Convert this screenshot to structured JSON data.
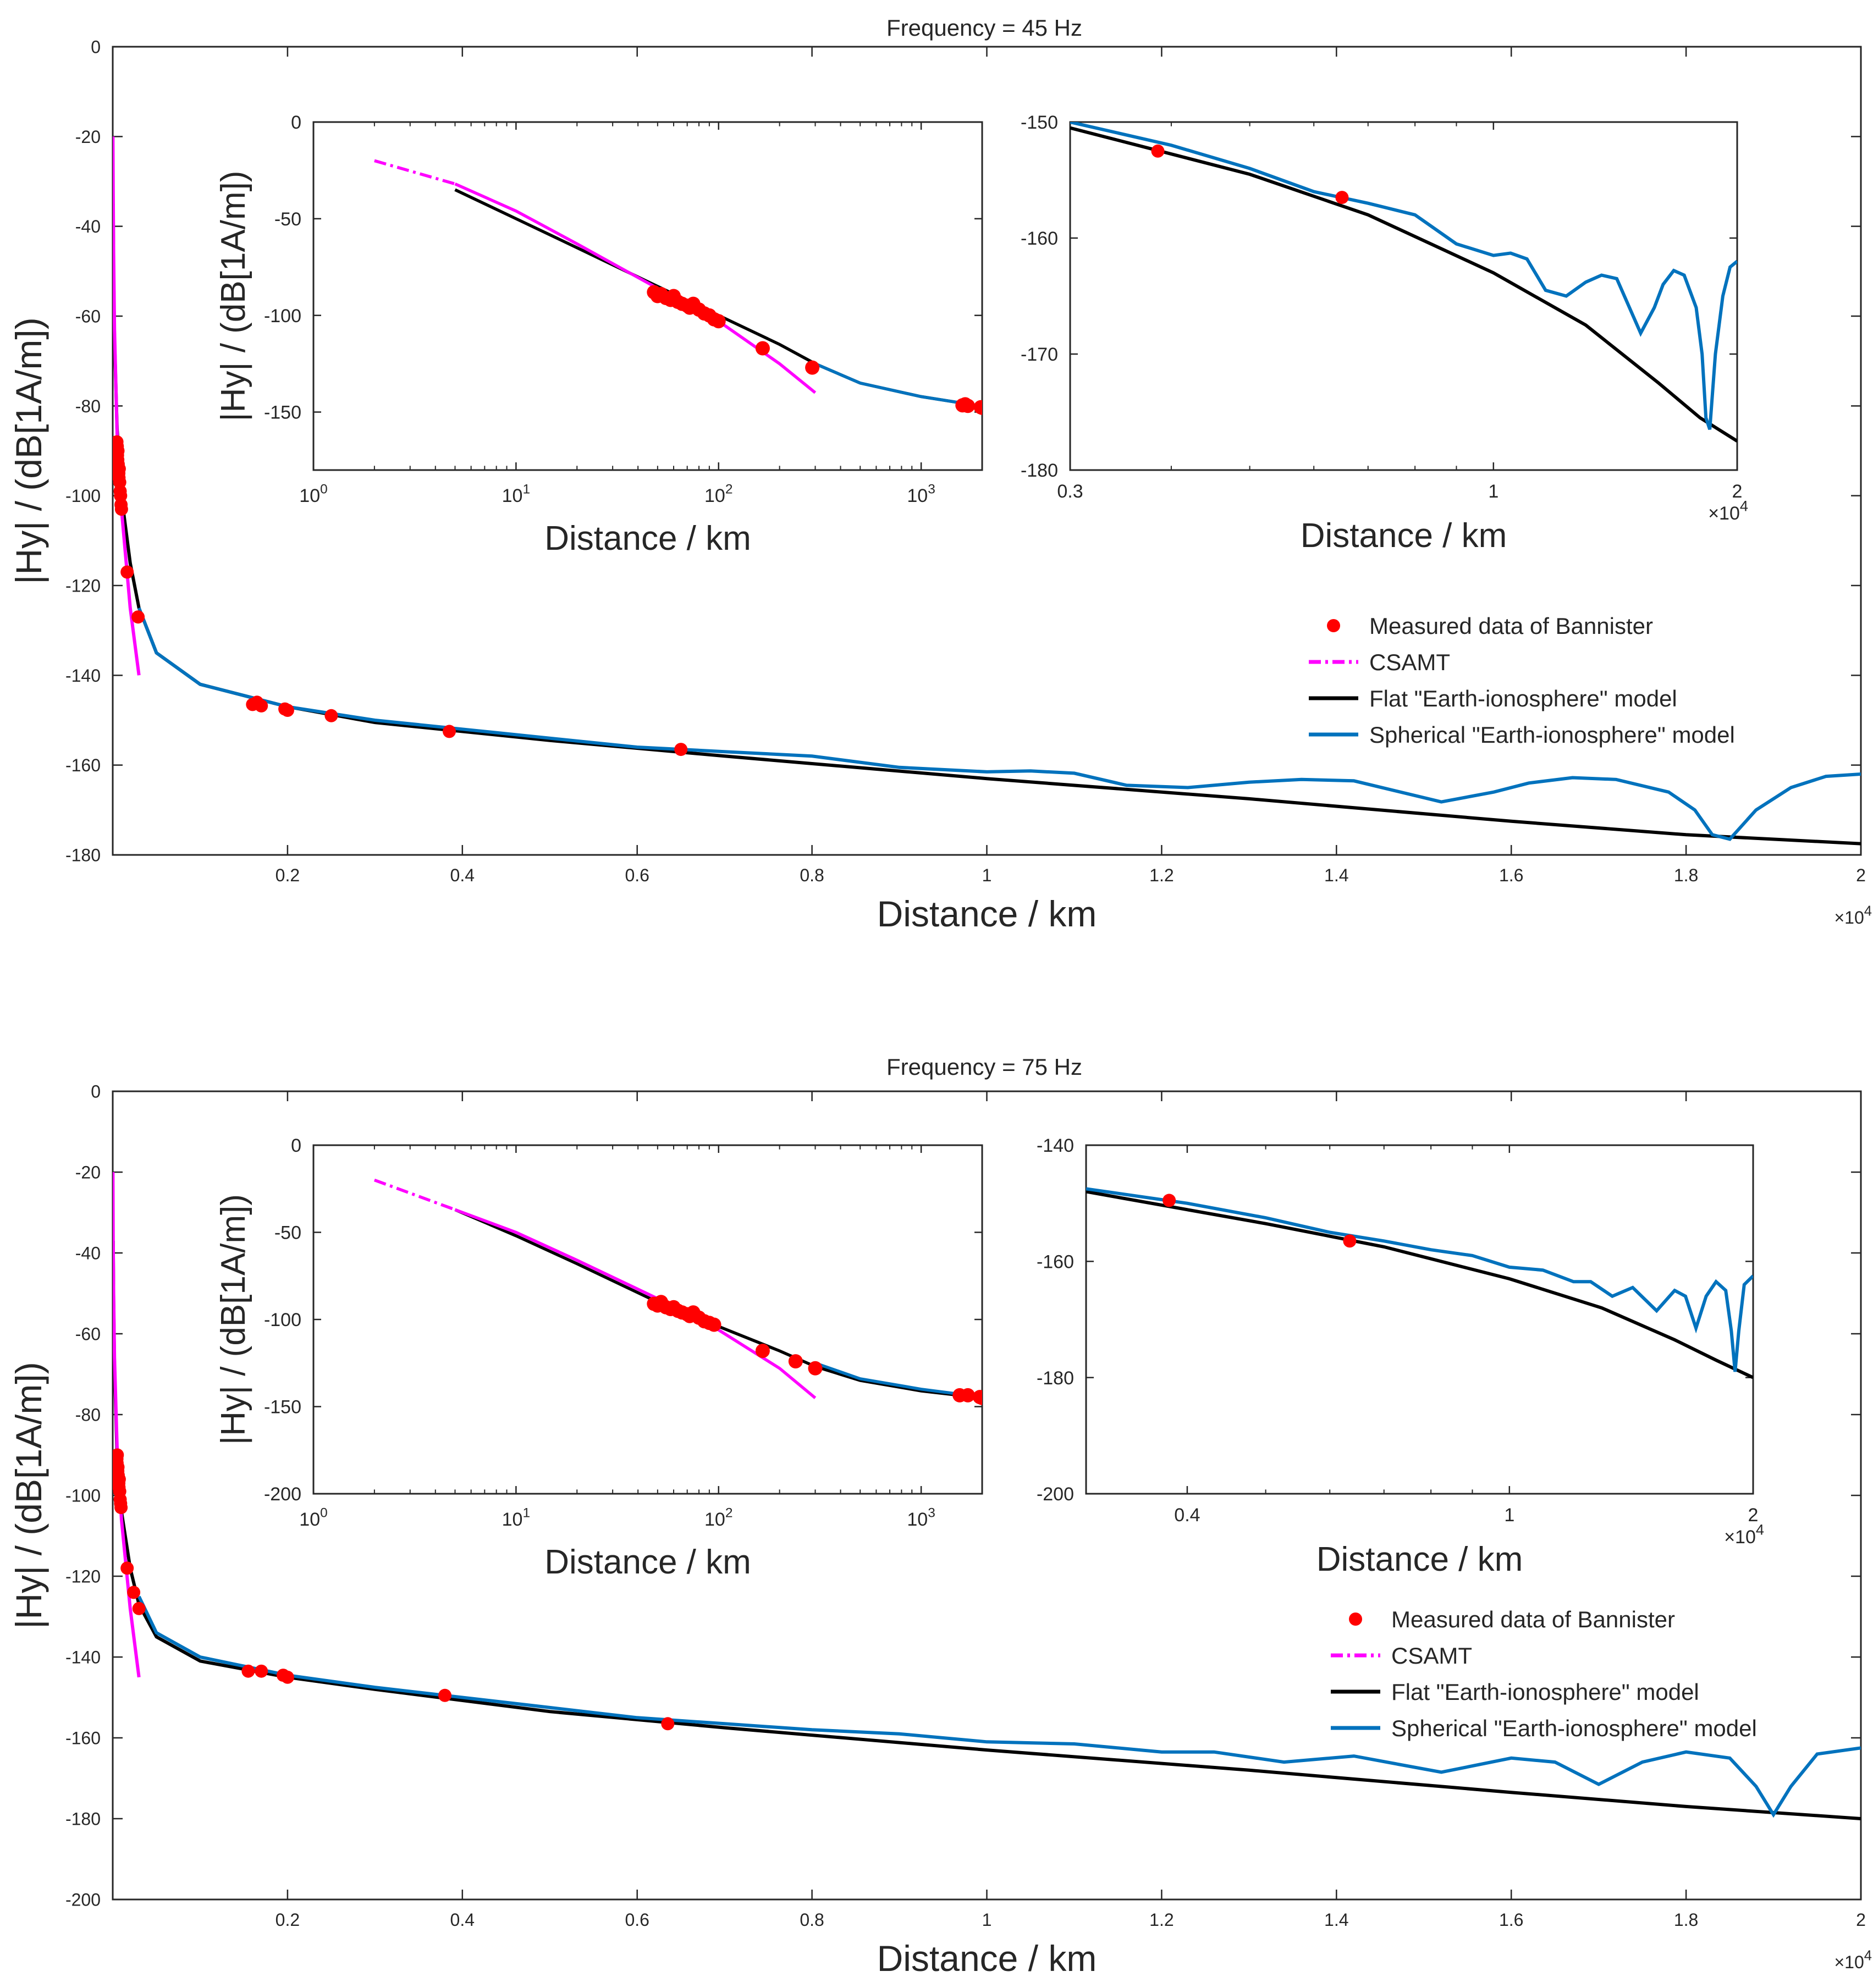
{
  "colors": {
    "measured": "#ff0000",
    "csamt": "#ff00ff",
    "flat": "#000000",
    "spherical": "#0072bd",
    "axis": "#262626"
  },
  "legend": {
    "measured": "Measured data of Bannister",
    "csamt": "CSAMT",
    "flat": "Flat \"Earth-ionosphere\" model",
    "spherical": "Spherical \"Earth-ionosphere\" model"
  },
  "panels": [
    {
      "title": "Frequency = 45 Hz",
      "main": {
        "xlabel": "Distance / km",
        "ylabel": "|Hy| / (dB[1A/m])",
        "xlim": [
          0,
          20000
        ],
        "ylim": [
          -180,
          0
        ],
        "xticks": [
          2000,
          4000,
          6000,
          8000,
          10000,
          12000,
          14000,
          16000,
          18000,
          20000
        ],
        "xticklabels": [
          "0.2",
          "0.4",
          "0.6",
          "0.8",
          "1",
          "1.2",
          "1.4",
          "1.6",
          "1.8",
          "2"
        ],
        "yticks": [
          0,
          -20,
          -40,
          -60,
          -80,
          -100,
          -120,
          -140,
          -160,
          -180
        ],
        "yticklabels": [
          "0",
          "-20",
          "-40",
          "-60",
          "-80",
          "-100",
          "-120",
          "-140",
          "-160",
          "-180"
        ],
        "exponent": "×10",
        "exponent_power": "4"
      },
      "inset_left": {
        "xlabel": "Distance / km",
        "ylabel": "|Hy| / (dB[1A/m])",
        "xscale": "log",
        "xlim": [
          1,
          2000
        ],
        "ylim": [
          -180,
          0
        ],
        "xticks": [
          1,
          10,
          100,
          1000
        ],
        "xticklabels": [
          {
            "base": "10",
            "pow": "0"
          },
          {
            "base": "10",
            "pow": "1"
          },
          {
            "base": "10",
            "pow": "2"
          },
          {
            "base": "10",
            "pow": "3"
          }
        ],
        "yticks": [
          0,
          -50,
          -100,
          -150
        ],
        "yticklabels": [
          "0",
          "-50",
          "-100",
          "-150"
        ]
      },
      "inset_right": {
        "xlabel": "Distance / km",
        "xscale": "log",
        "xlim": [
          3000,
          20000
        ],
        "ylim": [
          -180,
          -150
        ],
        "xticks": [
          3000,
          10000,
          20000
        ],
        "xticklabels": [
          "0.3",
          "1",
          "2"
        ],
        "yticks": [
          -150,
          -160,
          -170,
          -180
        ],
        "yticklabels": [
          "-150",
          "-160",
          "-170",
          "-180"
        ],
        "exponent": "×10",
        "exponent_power": "4"
      },
      "chart_data": {
        "type": "line",
        "csamt": {
          "x": [
            2,
            5,
            10,
            20,
            50,
            100,
            200,
            300
          ],
          "y": [
            -20,
            -32,
            -46,
            -63,
            -86,
            -103,
            -125,
            -140
          ]
        },
        "flat": {
          "x": [
            5,
            10,
            20,
            50,
            100,
            200,
            300,
            500,
            1000,
            2000,
            3000,
            5000,
            7000,
            10000,
            13000,
            16000,
            18000,
            20000
          ],
          "y": [
            -35,
            -50,
            -65,
            -85,
            -100,
            -115,
            -125,
            -135,
            -142,
            -147,
            -150.5,
            -154.5,
            -158,
            -163,
            -167.5,
            -172.5,
            -175.5,
            -177.5
          ]
        },
        "spherical": {
          "x": [
            300,
            500,
            1000,
            2000,
            3000,
            4000,
            5000,
            6000,
            7000,
            8000,
            9000,
            10000,
            10500,
            11000,
            11600,
            12300,
            13000,
            13600,
            14200,
            15200,
            15800,
            16200,
            16700,
            17200,
            17800,
            18100,
            18300,
            18500,
            18800,
            19200,
            19600,
            20000
          ],
          "y": [
            -125,
            -135,
            -142,
            -147,
            -150,
            -152,
            -154,
            -156,
            -157,
            -158,
            -160.5,
            -161.5,
            -161.3,
            -161.8,
            -164.5,
            -165,
            -163.8,
            -163.2,
            -163.5,
            -168.2,
            -166,
            -164,
            -162.8,
            -163.2,
            -166,
            -170,
            -175.5,
            -176.5,
            -170,
            -165,
            -162.5,
            -162
          ]
        },
        "measured": {
          "x": [
            48,
            50,
            52,
            55,
            58,
            60,
            63,
            66,
            70,
            72,
            75,
            80,
            85,
            90,
            95,
            100,
            165,
            290,
            1600,
            1650,
            1700,
            1970,
            2000,
            2500,
            3850,
            6500
          ],
          "y": [
            -88,
            -90,
            -89,
            -91,
            -92,
            -90,
            -93,
            -94,
            -95,
            -96,
            -94,
            -97,
            -99,
            -100,
            -102,
            -103,
            -117,
            -127,
            -146.5,
            -146,
            -146.8,
            -147.5,
            -147.8,
            -149,
            -152.5,
            -156.5
          ]
        }
      }
    },
    {
      "title": "Frequency = 75 Hz",
      "main": {
        "xlabel": "Distance / km",
        "ylabel": "|Hy| / (dB[1A/m])",
        "xlim": [
          0,
          20000
        ],
        "ylim": [
          -200,
          0
        ],
        "xticks": [
          2000,
          4000,
          6000,
          8000,
          10000,
          12000,
          14000,
          16000,
          18000,
          20000
        ],
        "xticklabels": [
          "0.2",
          "0.4",
          "0.6",
          "0.8",
          "1",
          "1.2",
          "1.4",
          "1.6",
          "1.8",
          "2"
        ],
        "yticks": [
          0,
          -20,
          -40,
          -60,
          -80,
          -100,
          -120,
          -140,
          -160,
          -180,
          -200
        ],
        "yticklabels": [
          "0",
          "-20",
          "-40",
          "-60",
          "-80",
          "-100",
          "-120",
          "-140",
          "-160",
          "-180",
          "-200"
        ],
        "exponent": "×10",
        "exponent_power": "4"
      },
      "inset_left": {
        "xlabel": "Distance / km",
        "ylabel": "|Hy| / (dB[1A/m])",
        "xscale": "log",
        "xlim": [
          1,
          2000
        ],
        "ylim": [
          -200,
          0
        ],
        "xticks": [
          1,
          10,
          100,
          1000
        ],
        "xticklabels": [
          {
            "base": "10",
            "pow": "0"
          },
          {
            "base": "10",
            "pow": "1"
          },
          {
            "base": "10",
            "pow": "2"
          },
          {
            "base": "10",
            "pow": "3"
          }
        ],
        "yticks": [
          0,
          -50,
          -100,
          -150,
          -200
        ],
        "yticklabels": [
          "0",
          "-50",
          "-100",
          "-150",
          "-200"
        ]
      },
      "inset_right": {
        "xlabel": "Distance / km",
        "xscale": "log",
        "xlim": [
          3000,
          20000
        ],
        "ylim": [
          -200,
          -140
        ],
        "xticks": [
          4000,
          10000,
          20000
        ],
        "xticklabels": [
          "0.4",
          "1",
          "2"
        ],
        "yticks": [
          -140,
          -160,
          -180,
          -200
        ],
        "yticklabels": [
          "-140",
          "-160",
          "-180",
          "-200"
        ],
        "exponent": "×10",
        "exponent_power": "4"
      },
      "chart_data": {
        "type": "line",
        "csamt": {
          "x": [
            2,
            5,
            10,
            20,
            50,
            100,
            200,
            300
          ],
          "y": [
            -20,
            -37,
            -50,
            -66,
            -88,
            -106,
            -128,
            -145
          ]
        },
        "flat": {
          "x": [
            5,
            10,
            20,
            50,
            100,
            200,
            300,
            500,
            1000,
            2000,
            3000,
            5000,
            7000,
            10000,
            13000,
            16000,
            18000,
            20000
          ],
          "y": [
            -37,
            -52,
            -68,
            -90,
            -104,
            -118,
            -127,
            -135,
            -141,
            -145,
            -148,
            -153.5,
            -157.5,
            -163,
            -168,
            -173.5,
            -177,
            -180
          ]
        },
        "spherical": {
          "x": [
            300,
            500,
            1000,
            2000,
            3000,
            4000,
            5000,
            6000,
            7000,
            8000,
            9000,
            10000,
            11000,
            12000,
            12600,
            13400,
            14200,
            15200,
            16000,
            16500,
            17000,
            17500,
            18000,
            18500,
            18800,
            19000,
            19200,
            19500,
            20000
          ],
          "y": [
            -125,
            -134,
            -140,
            -144.5,
            -147.5,
            -150,
            -152.5,
            -155,
            -156.5,
            -158,
            -159,
            -161,
            -161.5,
            -163.5,
            -163.5,
            -166,
            -164.5,
            -168.5,
            -165,
            -166,
            -171.5,
            -166,
            -163.5,
            -165,
            -172,
            -179,
            -172,
            -164,
            -162.5
          ]
        },
        "measured": {
          "x": [
            48,
            50,
            52,
            55,
            58,
            60,
            63,
            66,
            70,
            72,
            75,
            80,
            85,
            90,
            95,
            165,
            240,
            300,
            1550,
            1700,
            1950,
            2000,
            3800,
            6350
          ],
          "y": [
            -91,
            -92,
            -90,
            -93,
            -94,
            -93,
            -95,
            -96,
            -97,
            -98,
            -96,
            -99,
            -101,
            -102,
            -103,
            -118,
            -124,
            -128,
            -143.5,
            -143.5,
            -144.5,
            -145,
            -149.5,
            -156.5
          ]
        }
      }
    }
  ]
}
